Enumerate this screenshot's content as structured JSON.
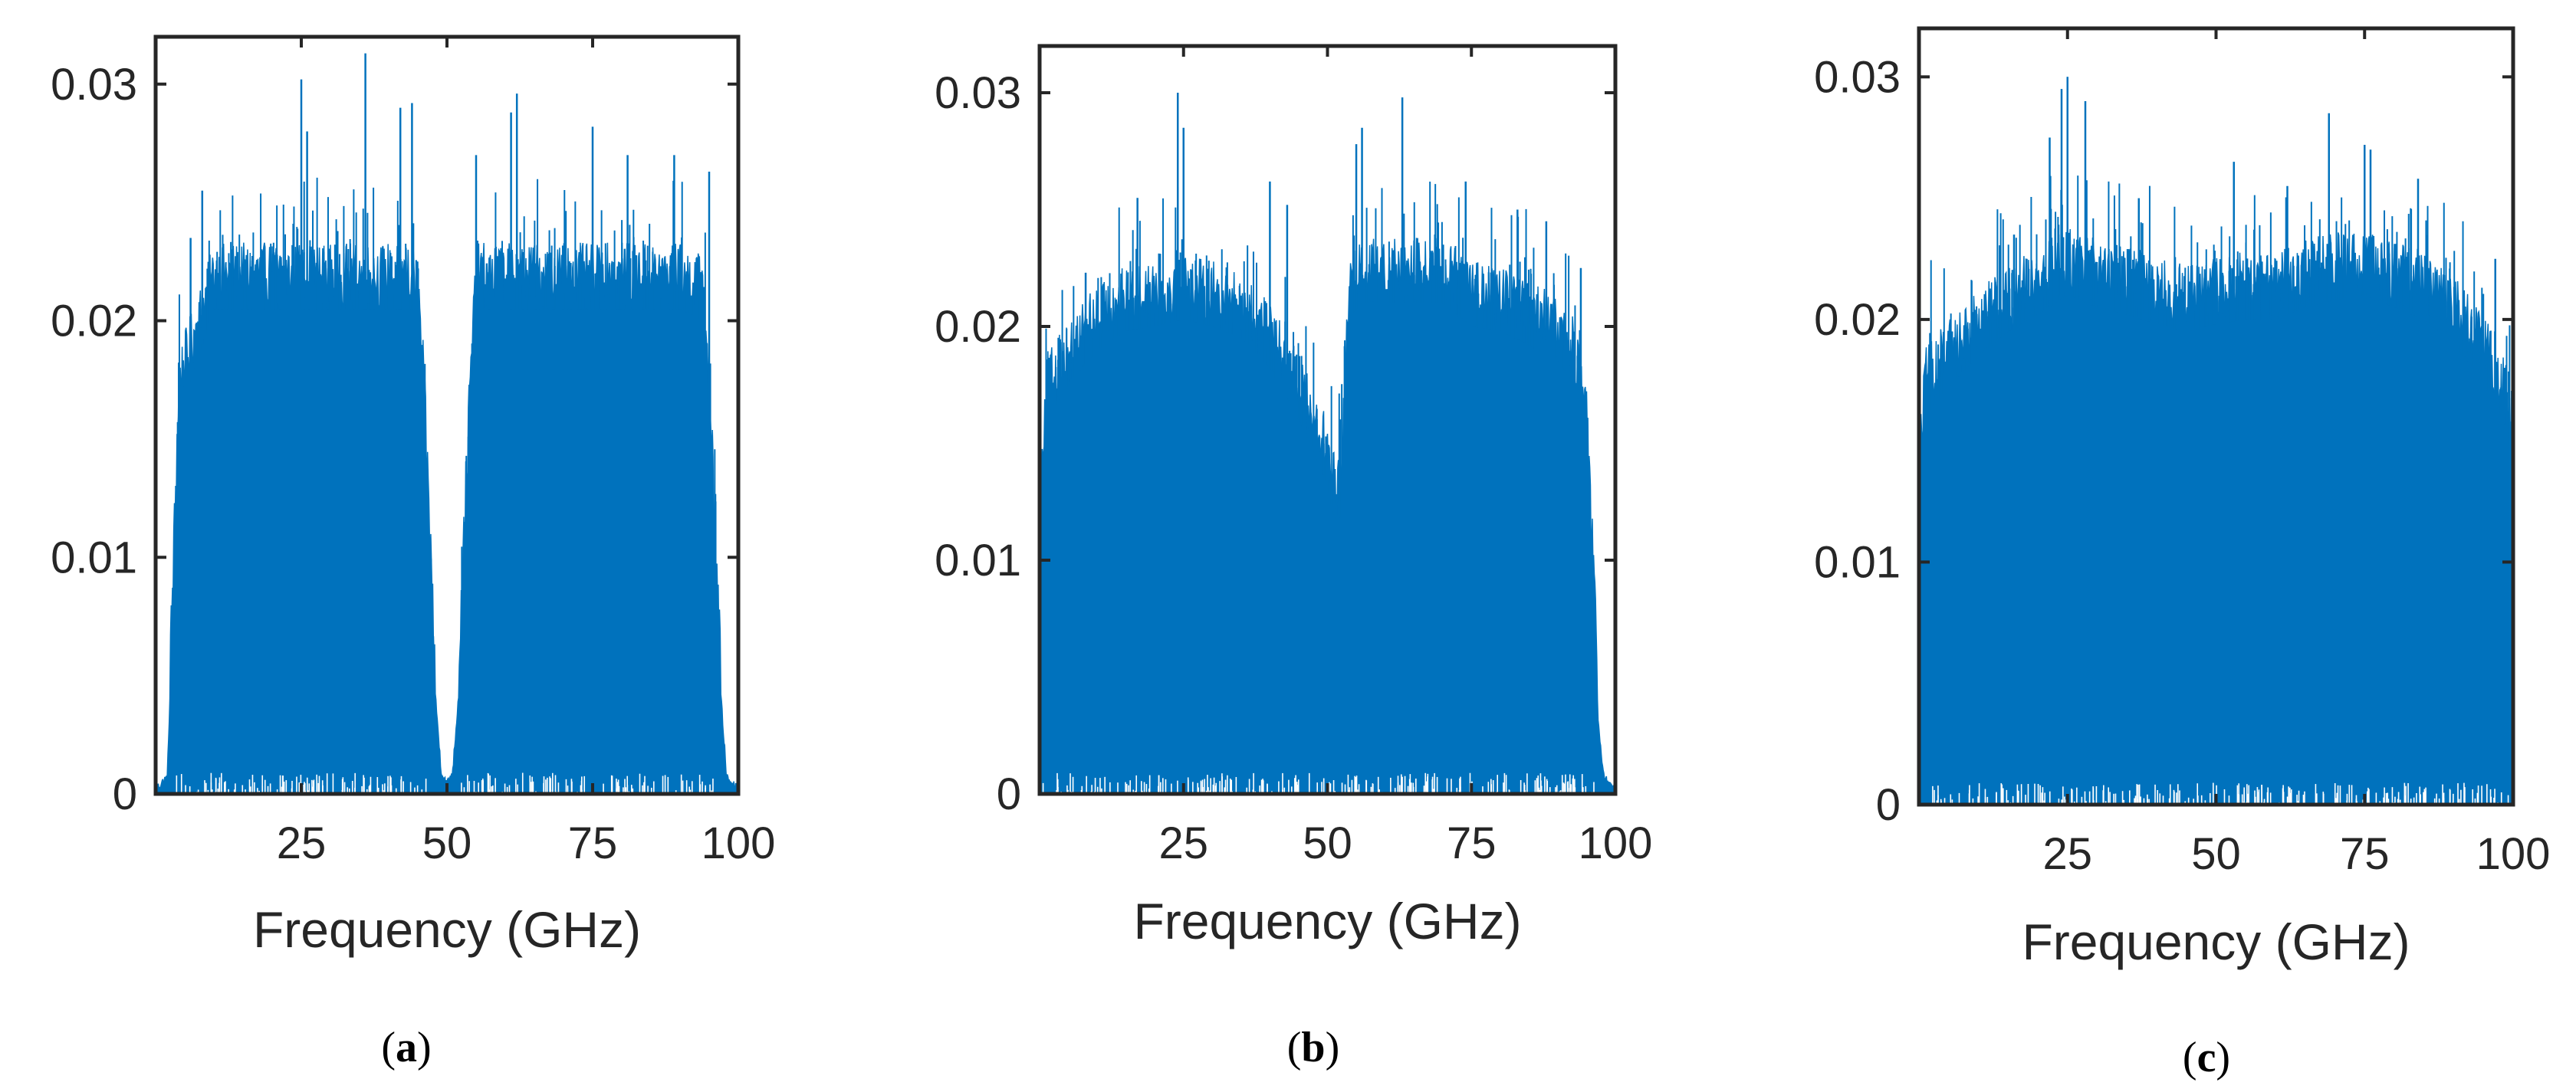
{
  "chart_data": [
    {
      "type": "area",
      "panel": "a",
      "caption_letter": "a",
      "xlabel": "Frequency (GHz)",
      "ylabel": "",
      "title": "",
      "xlim": [
        0,
        100
      ],
      "ylim": [
        0,
        0.032
      ],
      "xticks": [
        25,
        50,
        75,
        100
      ],
      "xtick_labels": [
        "25",
        "50",
        "75",
        "100"
      ],
      "yticks": [
        0,
        0.01,
        0.02,
        0.03
      ],
      "ytick_labels": [
        "0",
        "0.01",
        "0.02",
        "0.03"
      ],
      "grid": false,
      "series_color": "#0072BD",
      "envelope": {
        "x": [
          0,
          2,
          3,
          4,
          10,
          20,
          25,
          30,
          35,
          40,
          44,
          45,
          46,
          47,
          48,
          49,
          50,
          51,
          52,
          53,
          54,
          55,
          60,
          65,
          70,
          75,
          80,
          85,
          90,
          94,
          95,
          96,
          97,
          98,
          100
        ],
        "y": [
          0,
          0.0005,
          0.008,
          0.016,
          0.0205,
          0.0205,
          0.0205,
          0.0205,
          0.0205,
          0.0205,
          0.0205,
          0.02,
          0.016,
          0.01,
          0.004,
          0.0008,
          0.0002,
          0.0008,
          0.004,
          0.01,
          0.016,
          0.0205,
          0.0205,
          0.0205,
          0.0205,
          0.0205,
          0.0205,
          0.0205,
          0.0205,
          0.02,
          0.016,
          0.01,
          0.004,
          0.0005,
          0
        ]
      },
      "peaks": [
        [
          6,
          0.0235
        ],
        [
          8,
          0.0255
        ],
        [
          25,
          0.0302
        ],
        [
          26,
          0.028
        ],
        [
          36,
          0.0313
        ],
        [
          42,
          0.029
        ],
        [
          44,
          0.0292
        ],
        [
          55,
          0.027
        ],
        [
          61,
          0.0288
        ],
        [
          62,
          0.0296
        ],
        [
          75,
          0.0282
        ],
        [
          81,
          0.027
        ],
        [
          89,
          0.027
        ],
        [
          95,
          0.0263
        ]
      ]
    },
    {
      "type": "area",
      "panel": "b",
      "caption_letter": "b",
      "xlabel": "Frequency (GHz)",
      "ylabel": "",
      "title": "",
      "xlim": [
        0,
        100
      ],
      "ylim": [
        0,
        0.032
      ],
      "xticks": [
        25,
        50,
        75,
        100
      ],
      "xtick_labels": [
        "25",
        "50",
        "75",
        "100"
      ],
      "yticks": [
        0,
        0.01,
        0.02,
        0.03
      ],
      "ytick_labels": [
        "0",
        "0.01",
        "0.02",
        "0.03"
      ],
      "grid": false,
      "series_color": "#0072BD",
      "envelope": {
        "x": [
          0,
          1,
          5,
          10,
          15,
          20,
          25,
          30,
          35,
          40,
          44,
          47,
          49,
          50,
          51,
          52,
          53,
          54,
          56,
          60,
          65,
          70,
          75,
          80,
          85,
          90,
          93,
          95,
          96,
          97,
          98,
          100
        ],
        "y": [
          0.0105,
          0.016,
          0.0175,
          0.019,
          0.0198,
          0.02,
          0.0203,
          0.02,
          0.0195,
          0.0182,
          0.0165,
          0.015,
          0.0138,
          0.0132,
          0.012,
          0.0115,
          0.016,
          0.0205,
          0.021,
          0.021,
          0.021,
          0.021,
          0.02,
          0.0198,
          0.0192,
          0.0185,
          0.0175,
          0.015,
          0.009,
          0.003,
          0.0005,
          0
        ]
      },
      "peaks": [
        [
          8,
          0.0223
        ],
        [
          17,
          0.0255
        ],
        [
          24,
          0.03
        ],
        [
          25,
          0.0285
        ],
        [
          40,
          0.0262
        ],
        [
          43,
          0.0252
        ],
        [
          55,
          0.0278
        ],
        [
          56,
          0.0285
        ],
        [
          63,
          0.0298
        ],
        [
          74,
          0.0262
        ],
        [
          83,
          0.025
        ],
        [
          88,
          0.0245
        ],
        [
          94,
          0.0225
        ]
      ]
    },
    {
      "type": "area",
      "panel": "c",
      "caption_letter": "c",
      "xlabel": "Frequency (GHz)",
      "ylabel": "",
      "title": "",
      "xlim": [
        0,
        100
      ],
      "ylim": [
        0,
        0.032
      ],
      "xticks": [
        25,
        50,
        75,
        100
      ],
      "xtick_labels": [
        "25",
        "50",
        "75",
        "100"
      ],
      "yticks": [
        0,
        0.01,
        0.02,
        0.03
      ],
      "ytick_labels": [
        "0",
        "0.01",
        "0.02",
        "0.03"
      ],
      "grid": false,
      "series_color": "#0072BD",
      "envelope": {
        "x": [
          0,
          1,
          5,
          10,
          15,
          20,
          25,
          30,
          35,
          40,
          45,
          50,
          55,
          60,
          65,
          70,
          75,
          80,
          85,
          90,
          95,
          99,
          100
        ],
        "y": [
          0.0125,
          0.016,
          0.0172,
          0.0185,
          0.0195,
          0.0202,
          0.021,
          0.0205,
          0.0202,
          0.0198,
          0.0195,
          0.0198,
          0.02,
          0.02,
          0.0205,
          0.0208,
          0.021,
          0.0205,
          0.02,
          0.019,
          0.0175,
          0.0155,
          0.0125
        ]
      },
      "peaks": [
        [
          16,
          0.0235
        ],
        [
          22,
          0.0275
        ],
        [
          24,
          0.0295
        ],
        [
          25,
          0.03
        ],
        [
          28,
          0.029
        ],
        [
          37,
          0.025
        ],
        [
          53,
          0.0265
        ],
        [
          62,
          0.0255
        ],
        [
          69,
          0.0285
        ],
        [
          75,
          0.0272
        ],
        [
          76,
          0.027
        ],
        [
          84,
          0.0258
        ],
        [
          97,
          0.0225
        ]
      ]
    }
  ]
}
